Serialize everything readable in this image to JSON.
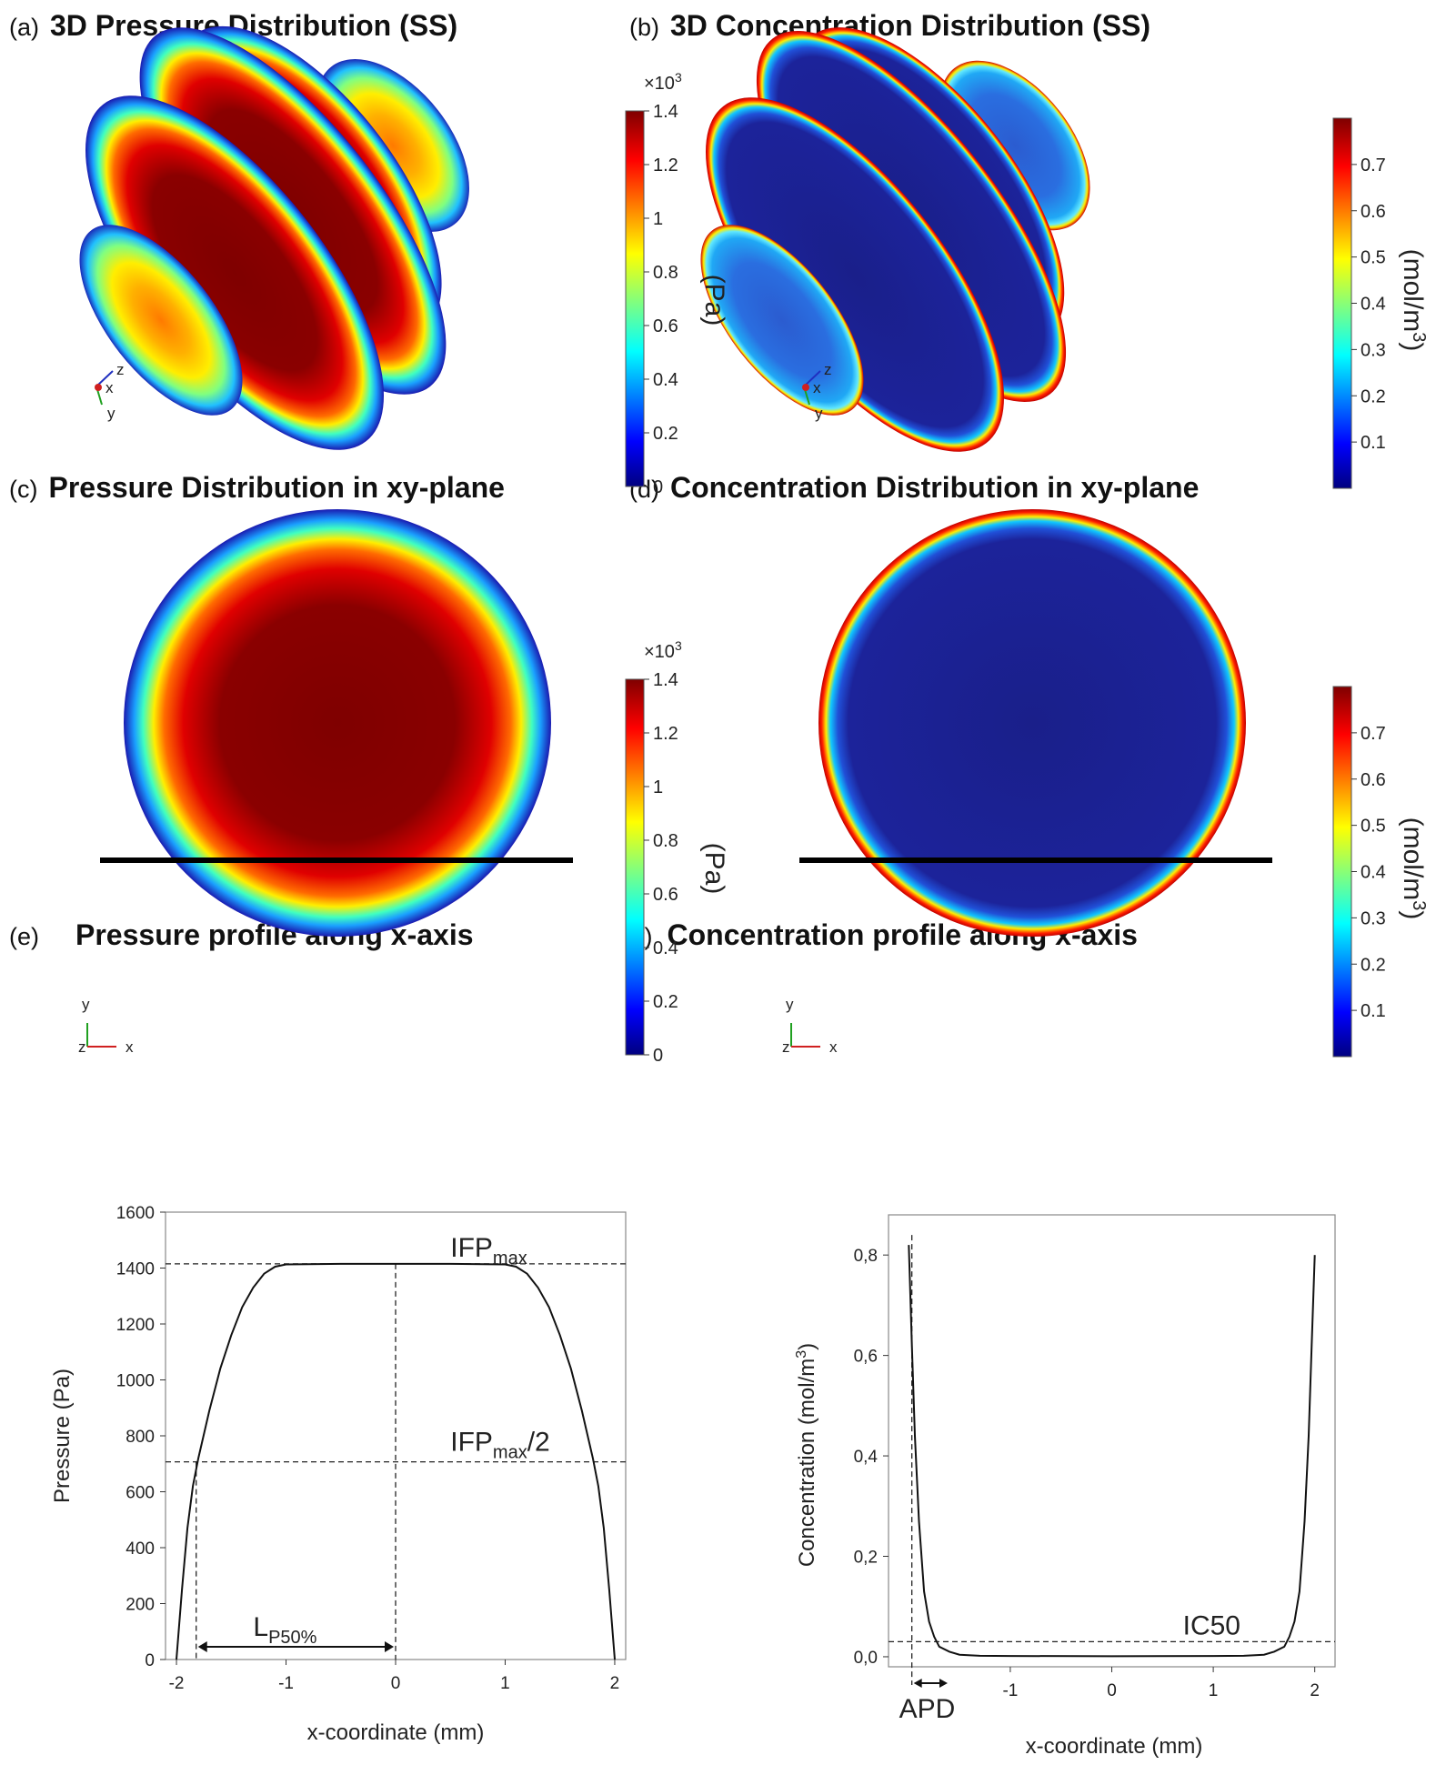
{
  "panels": {
    "a": {
      "label": "(a)",
      "title": "3D Pressure Distribution (SS)"
    },
    "b": {
      "label": "(b)",
      "title": "3D Concentration Distribution (SS)"
    },
    "c": {
      "label": "(c)",
      "title": "Pressure Distribution in xy-plane"
    },
    "d": {
      "label": "(d)",
      "title": "Concentration Distribution in xy-plane"
    },
    "e": {
      "label": "(e)",
      "title": "Pressure profile along x-axis"
    },
    "f": {
      "label": "(f)",
      "title": "Concentration profile along x-axis"
    }
  },
  "colorbars": {
    "pressure": {
      "multiplier": "×10",
      "multiplier_exp": "3",
      "ticks": [
        "1.4",
        "1.2",
        "1",
        "0.8",
        "0.6",
        "0.4",
        "0.2",
        "0"
      ],
      "unit": "(Pa)",
      "range": [
        0,
        1.4
      ]
    },
    "concentration": {
      "ticks": [
        "0.7",
        "0.6",
        "0.5",
        "0.4",
        "0.3",
        "0.2",
        "0.1"
      ],
      "unit_main": "(mol/m",
      "unit_exp": "3",
      "unit_close": ")",
      "range": [
        0,
        0.8
      ]
    }
  },
  "triads": {
    "three_d": {
      "z": "z",
      "x": "x",
      "y": "y"
    },
    "plane": {
      "y": "y",
      "z": "z",
      "x": "x"
    }
  },
  "colors": {
    "jet_stops": [
      "#00007f",
      "#0000ff",
      "#00ffff",
      "#ffff00",
      "#ff0000",
      "#7f0000"
    ],
    "axis": "#000000"
  },
  "chart_data": [
    {
      "type": "line",
      "panel": "e",
      "title": "Pressure profile along x-axis",
      "xlabel": "x-coordinate (mm)",
      "ylabel": "Pressure (Pa)",
      "xlim": [
        -2.1,
        2.1
      ],
      "ylim": [
        0,
        1600
      ],
      "xticks": [
        "-2",
        "-1",
        "0",
        "1",
        "2"
      ],
      "yticks": [
        "0",
        "200",
        "400",
        "600",
        "800",
        "1000",
        "1200",
        "1400",
        "1600"
      ],
      "series": [
        {
          "x": [
            -2.0,
            -1.95,
            -1.9,
            -1.85,
            -1.8,
            -1.7,
            -1.6,
            -1.5,
            -1.4,
            -1.3,
            -1.2,
            -1.1,
            -1.0,
            -0.5,
            0.0,
            0.5,
            1.0,
            1.1,
            1.2,
            1.3,
            1.4,
            1.5,
            1.6,
            1.7,
            1.8,
            1.85,
            1.9,
            1.95,
            2.0
          ],
          "y": [
            0,
            250,
            470,
            620,
            720,
            890,
            1040,
            1160,
            1260,
            1330,
            1380,
            1405,
            1413,
            1415,
            1415,
            1415,
            1413,
            1405,
            1380,
            1330,
            1260,
            1160,
            1040,
            890,
            720,
            620,
            470,
            250,
            0
          ]
        }
      ],
      "annotations": {
        "ifp_max": "IFP",
        "ifp_max_sub": "max",
        "ifp_half": "IFP",
        "ifp_half_sub": "max",
        "ifp_half_tail": "/2",
        "lp50": "L",
        "lp50_sub": "P50%"
      },
      "reference_lines": {
        "ifp_max": 1415,
        "ifp_half": 707,
        "x_zero": 0,
        "x_lp50": -1.82
      }
    },
    {
      "type": "line",
      "panel": "f",
      "title": "Concentration profile along x-axis",
      "xlabel": "x-coordinate (mm)",
      "ylabel": "Concentration (mol/m",
      "ylabel_exp": "3",
      "ylabel_close": ")",
      "xlim": [
        -2.2,
        2.2
      ],
      "ylim": [
        -0.02,
        0.88
      ],
      "xticks": [
        "-1",
        "0",
        "1",
        "2"
      ],
      "yticks": [
        "0,0",
        "0,2",
        "0,4",
        "0,6",
        "0,8"
      ],
      "series": [
        {
          "x": [
            -2.0,
            -1.97,
            -1.94,
            -1.9,
            -1.85,
            -1.8,
            -1.75,
            -1.7,
            -1.6,
            -1.5,
            -1.3,
            -1.0,
            0.0,
            1.0,
            1.3,
            1.5,
            1.6,
            1.7,
            1.75,
            1.8,
            1.85,
            1.9,
            1.94,
            1.97,
            2.0
          ],
          "y": [
            0.82,
            0.62,
            0.44,
            0.27,
            0.13,
            0.07,
            0.04,
            0.02,
            0.01,
            0.004,
            0.002,
            0.0015,
            0.001,
            0.0015,
            0.002,
            0.004,
            0.01,
            0.02,
            0.04,
            0.07,
            0.13,
            0.27,
            0.44,
            0.62,
            0.8
          ]
        }
      ],
      "annotations": {
        "ic50": "IC50",
        "apd": "APD"
      },
      "reference_lines": {
        "ic50": 0.03,
        "x_apd": -1.97
      }
    }
  ]
}
